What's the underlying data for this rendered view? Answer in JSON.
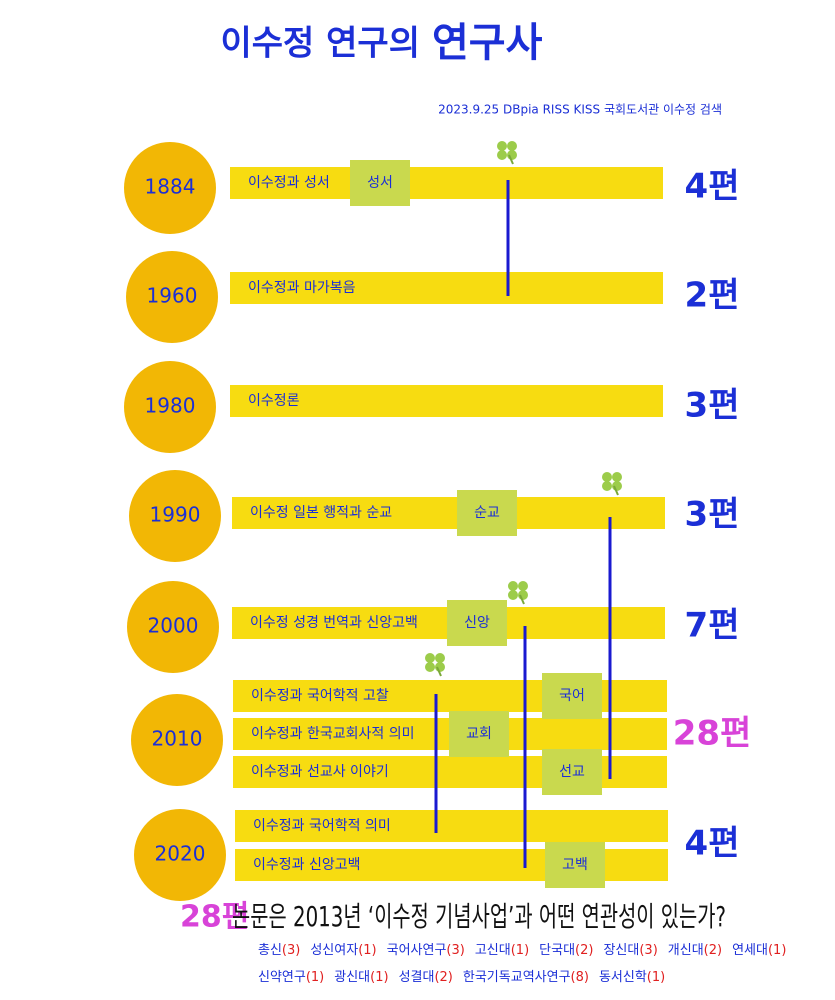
{
  "title": {
    "main": "이수정 연구의",
    "emphasis": "연구사"
  },
  "source": "2023.9.25  DBpia  RISS  KISS  국회도서관  이수정  검색",
  "periods": [
    {
      "year": "1884",
      "count": "4편",
      "topics": [
        {
          "label": "이수정과  성서",
          "tag": "성서"
        }
      ]
    },
    {
      "year": "1960",
      "count": "2편",
      "topics": [
        {
          "label": "이수정과  마가복음"
        }
      ]
    },
    {
      "year": "1980",
      "count": "3편",
      "topics": [
        {
          "label": "이수정론"
        }
      ]
    },
    {
      "year": "1990",
      "count": "3편",
      "topics": [
        {
          "label": "이수정  일본  행적과   순교",
          "tag": "순교"
        }
      ]
    },
    {
      "year": "2000",
      "count": "7편",
      "topics": [
        {
          "label": "이수정  성경  번역과  신앙고백",
          "tag": "신앙"
        }
      ]
    },
    {
      "year": "2010",
      "count": "28편",
      "topics": [
        {
          "label": "이수정과  국어학적  고찰",
          "tag": "국어"
        },
        {
          "label": "이수정과  한국교회사적  의미",
          "tag": "교회"
        },
        {
          "label": "이수정과  선교사  이야기",
          "tag": "선교"
        }
      ]
    },
    {
      "year": "2020",
      "count": "4편",
      "topics": [
        {
          "label": "이수정과  국어학적  의미"
        },
        {
          "label": "이수정과  신앙고백",
          "tag": "고백"
        }
      ]
    }
  ],
  "question": {
    "count": "28편",
    "text": "논문은   2013년   ‘이수정 기념사업’과  어떤  연관성이  있는가?"
  },
  "institutions": [
    [
      {
        "name": "총신",
        "count": "(3)"
      },
      {
        "name": "성신여자",
        "count": "(1)"
      },
      {
        "name": "국어사연구",
        "count": "(3)"
      },
      {
        "name": "고신대",
        "count": "(1)"
      },
      {
        "name": "단국대",
        "count": "(2)"
      },
      {
        "name": "장신대",
        "count": "(3)"
      },
      {
        "name": "개신대",
        "count": "(2)"
      },
      {
        "name": "연세대",
        "count": "(1)"
      }
    ],
    [
      {
        "name": "신약연구",
        "count": "(1)"
      },
      {
        "name": "광신대",
        "count": "(1)"
      },
      {
        "name": "성결대",
        "count": "(2)"
      },
      {
        "name": "한국기독교역사연구",
        "count": "(8)"
      },
      {
        "name": "동서신학",
        "count": "(1)"
      }
    ]
  ]
}
